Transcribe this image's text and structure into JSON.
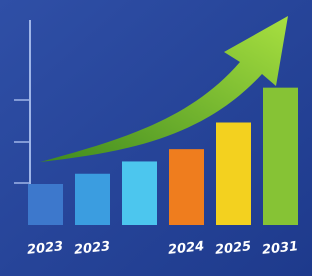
{
  "chart_data": {
    "type": "bar",
    "categories": [
      "2023",
      "2023",
      null,
      "2024",
      "2025",
      "2031"
    ],
    "series": [
      {
        "values": [
          20,
          25,
          31,
          37,
          50,
          67
        ],
        "colors": [
          "#3d78cc",
          "#3b9de0",
          "#4cc6ee",
          "#ef7d1e",
          "#f3d11f",
          "#86c335"
        ]
      }
    ],
    "ylim": [
      0,
      100
    ]
  }
}
